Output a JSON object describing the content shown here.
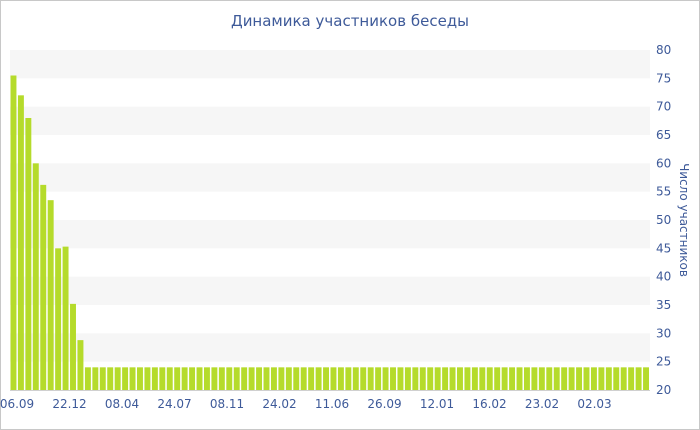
{
  "chart_data": {
    "type": "bar",
    "title": "Динамика участников беседы",
    "xlabel": "",
    "ylabel": "Число участников",
    "ylim": [
      20,
      80
    ],
    "yticks": [
      20,
      25,
      30,
      35,
      40,
      45,
      50,
      55,
      60,
      65,
      70,
      75,
      80
    ],
    "x_tick_labels": [
      "06.09",
      "22.12",
      "08.04",
      "24.07",
      "08.11",
      "24.02",
      "11.06",
      "26.09",
      "12.01",
      "16.02",
      "23.02",
      "02.03"
    ],
    "y_axis_position": "right",
    "grid": "horizontal alternating bands",
    "bar_color": "#b5db2b",
    "band_color": "#f6f6f6",
    "text_color": "#3e5a99",
    "values": [
      75.5,
      72,
      68,
      60,
      56.2,
      53.5,
      45,
      45.3,
      35.2,
      28.8,
      24,
      24,
      24,
      24,
      24,
      24,
      24,
      24,
      24,
      24,
      24,
      24,
      24,
      24,
      24,
      24,
      24,
      24,
      24,
      24,
      24,
      24,
      24,
      24,
      24,
      24,
      24,
      24,
      24,
      24,
      24,
      24,
      24,
      24,
      24,
      24,
      24,
      24,
      24,
      24,
      24,
      24,
      24,
      24,
      24,
      24,
      24,
      24,
      24,
      24,
      24,
      24,
      24,
      24,
      24,
      24,
      24,
      24,
      24,
      24,
      24,
      24,
      24,
      24,
      24,
      24,
      24,
      24,
      24,
      24,
      24,
      24,
      24,
      24,
      24,
      24
    ]
  }
}
